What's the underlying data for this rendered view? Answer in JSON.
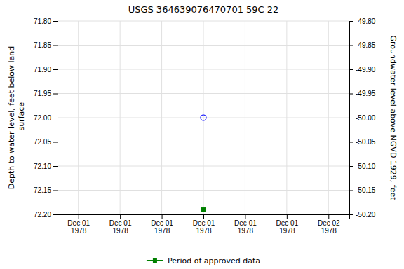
{
  "chart_data": {
    "type": "scatter",
    "title": "USGS 364639076470701 59C 22",
    "y_label": "Depth to water level, feet below land\n surface",
    "y2_label": "Groundwater level above NGVD 1929, feet",
    "categories": [
      "Dec 01\n1978",
      "Dec 01\n1978",
      "Dec 01\n1978",
      "Dec 01\n1978",
      "Dec 01\n1978",
      "Dec 01\n1978",
      "Dec 02\n1978"
    ],
    "series": [
      {
        "color": "#0000ff",
        "marker": "circle-open",
        "values": [
          null,
          null,
          null,
          72.0,
          null,
          null,
          null
        ]
      },
      {
        "name": "Period of approved data",
        "color": "#008000",
        "marker": "square",
        "values": [
          null,
          null,
          null,
          72.19,
          null,
          null,
          null
        ]
      }
    ],
    "ylim": [
      72.2,
      71.8
    ],
    "yticks": [
      {
        "value": 71.8,
        "label": "71.80"
      },
      {
        "value": 71.85,
        "label": "71.85"
      },
      {
        "value": 71.9,
        "label": "71.90"
      },
      {
        "value": 71.95,
        "label": "71.95"
      },
      {
        "value": 72.0,
        "label": "72.00"
      },
      {
        "value": 72.05,
        "label": "72.05"
      },
      {
        "value": 72.1,
        "label": "72.10"
      },
      {
        "value": 72.15,
        "label": "72.15"
      },
      {
        "value": 72.2,
        "label": "72.20"
      }
    ],
    "y2lim": [
      -50.2,
      -49.8
    ],
    "y2ticks": [
      {
        "value": -49.8,
        "label": "-49.80"
      },
      {
        "value": -49.85,
        "label": "-49.85"
      },
      {
        "value": -49.9,
        "label": "-49.90"
      },
      {
        "value": -49.95,
        "label": "-49.95"
      },
      {
        "value": -50.0,
        "label": "-50.00"
      },
      {
        "value": -50.05,
        "label": "-50.05"
      },
      {
        "value": -50.1,
        "label": "-50.10"
      },
      {
        "value": -50.15,
        "label": "-50.15"
      },
      {
        "value": -50.2,
        "label": "-50.20"
      }
    ],
    "grid": true,
    "legend": "bottom"
  }
}
